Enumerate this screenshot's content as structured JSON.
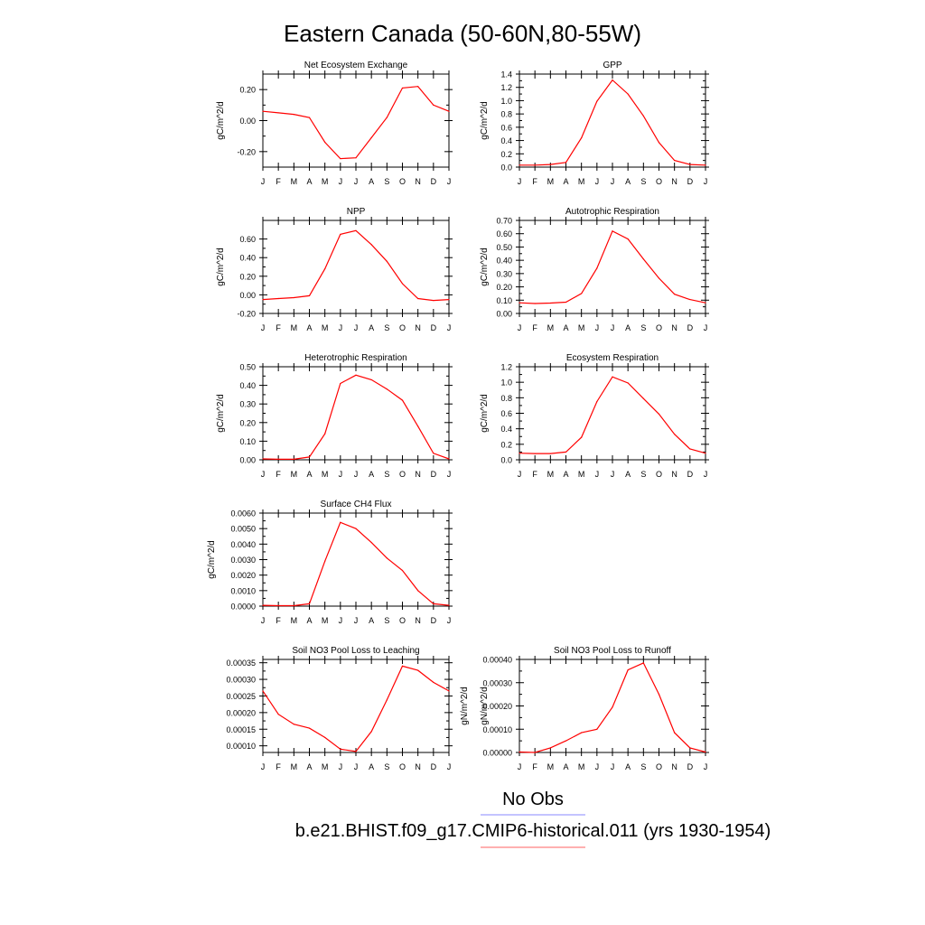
{
  "figure": {
    "title": "Eastern Canada (50-60N,80-55W)",
    "legend": {
      "obs_label": "No Obs",
      "obs_color": "#8a8aff",
      "model_label": "b.e21.BHIST.f09_g17.CMIP6-historical.011 (yrs 1930-1954)",
      "model_color": "#ff6060"
    },
    "series_color": "#ff0000"
  },
  "chart_data": [
    {
      "type": "line",
      "title": "Net Ecosystem Exchange",
      "ylabel": "gC/m^2/d",
      "x": [
        "J",
        "F",
        "M",
        "A",
        "M",
        "J",
        "J",
        "A",
        "S",
        "O",
        "N",
        "D",
        "J"
      ],
      "values": [
        0.06,
        0.05,
        0.04,
        0.02,
        -0.14,
        -0.245,
        -0.24,
        -0.11,
        0.02,
        0.21,
        0.22,
        0.1,
        0.06
      ],
      "ylim": [
        -0.3,
        0.3
      ],
      "yticks": [
        -0.2,
        0.0,
        0.2
      ],
      "yticklabels": [
        "-0.20",
        "0.00",
        "0.20"
      ]
    },
    {
      "type": "line",
      "title": "GPP",
      "ylabel": "gC/m^2/d",
      "x": [
        "J",
        "F",
        "M",
        "A",
        "M",
        "J",
        "J",
        "A",
        "S",
        "O",
        "N",
        "D",
        "J"
      ],
      "values": [
        0.03,
        0.03,
        0.04,
        0.07,
        0.44,
        0.99,
        1.31,
        1.1,
        0.77,
        0.37,
        0.1,
        0.04,
        0.03
      ],
      "ylim": [
        0.0,
        1.4
      ],
      "yticks": [
        0.0,
        0.2,
        0.4,
        0.6,
        0.8,
        1.0,
        1.2,
        1.4
      ],
      "yticklabels": [
        "0.0",
        "0.2",
        "0.4",
        "0.6",
        "0.8",
        "1.0",
        "1.2",
        "1.4"
      ]
    },
    {
      "type": "line",
      "title": "NPP",
      "ylabel": "gC/m^2/d",
      "x": [
        "J",
        "F",
        "M",
        "A",
        "M",
        "J",
        "J",
        "A",
        "S",
        "O",
        "N",
        "D",
        "J"
      ],
      "values": [
        -0.05,
        -0.04,
        -0.03,
        -0.01,
        0.28,
        0.65,
        0.69,
        0.54,
        0.36,
        0.12,
        -0.04,
        -0.06,
        -0.05
      ],
      "ylim": [
        -0.2,
        0.8
      ],
      "yticks": [
        -0.2,
        0.0,
        0.2,
        0.4,
        0.6
      ],
      "yticklabels": [
        "-0.20",
        "0.00",
        "0.20",
        "0.40",
        "0.60"
      ]
    },
    {
      "type": "line",
      "title": "Autotrophic Respiration",
      "ylabel": "gC/m^2/d",
      "x": [
        "J",
        "F",
        "M",
        "A",
        "M",
        "J",
        "J",
        "A",
        "S",
        "O",
        "N",
        "D",
        "J"
      ],
      "values": [
        0.08,
        0.075,
        0.078,
        0.085,
        0.15,
        0.34,
        0.62,
        0.56,
        0.41,
        0.265,
        0.145,
        0.105,
        0.08
      ],
      "ylim": [
        0.0,
        0.7
      ],
      "yticks": [
        0.0,
        0.1,
        0.2,
        0.3,
        0.4,
        0.5,
        0.6,
        0.7
      ],
      "yticklabels": [
        "0.00",
        "0.10",
        "0.20",
        "0.30",
        "0.40",
        "0.50",
        "0.60",
        "0.70"
      ]
    },
    {
      "type": "line",
      "title": "Heterotrophic Respiration",
      "ylabel": "gC/m^2/d",
      "x": [
        "J",
        "F",
        "M",
        "A",
        "M",
        "J",
        "J",
        "A",
        "S",
        "O",
        "N",
        "D",
        "J"
      ],
      "values": [
        0.005,
        0.003,
        0.003,
        0.015,
        0.14,
        0.41,
        0.455,
        0.43,
        0.38,
        0.32,
        0.18,
        0.035,
        0.005
      ],
      "ylim": [
        0.0,
        0.5
      ],
      "yticks": [
        0.0,
        0.1,
        0.2,
        0.3,
        0.4,
        0.5
      ],
      "yticklabels": [
        "0.00",
        "0.10",
        "0.20",
        "0.30",
        "0.40",
        "0.50"
      ]
    },
    {
      "type": "line",
      "title": "Ecosystem Respiration",
      "ylabel": "gC/m^2/d",
      "x": [
        "J",
        "F",
        "M",
        "A",
        "M",
        "J",
        "J",
        "A",
        "S",
        "O",
        "N",
        "D",
        "J"
      ],
      "values": [
        0.085,
        0.08,
        0.08,
        0.1,
        0.29,
        0.75,
        1.07,
        0.99,
        0.79,
        0.59,
        0.33,
        0.14,
        0.085
      ],
      "ylim": [
        0.0,
        1.2
      ],
      "yticks": [
        0.0,
        0.2,
        0.4,
        0.6,
        0.8,
        1.0,
        1.2
      ],
      "yticklabels": [
        "0.0",
        "0.2",
        "0.4",
        "0.6",
        "0.8",
        "1.0",
        "1.2"
      ]
    },
    {
      "type": "line",
      "title": "Surface CH4 Flux",
      "ylabel": "gC/m^2/d",
      "x": [
        "J",
        "F",
        "M",
        "A",
        "M",
        "J",
        "J",
        "A",
        "S",
        "O",
        "N",
        "D",
        "J"
      ],
      "values": [
        5e-05,
        3e-05,
        3e-05,
        0.00015,
        0.0029,
        0.0054,
        0.005,
        0.0041,
        0.0031,
        0.0023,
        0.001,
        0.00015,
        5e-05
      ],
      "ylim": [
        0.0,
        0.006
      ],
      "yticks": [
        0.0,
        0.001,
        0.002,
        0.003,
        0.004,
        0.005,
        0.006
      ],
      "yticklabels": [
        "0.0000",
        "0.0010",
        "0.0020",
        "0.0030",
        "0.0040",
        "0.0050",
        "0.0060"
      ]
    },
    {
      "type": "line",
      "title": "Soil NO3 Pool Loss to Leaching",
      "ylabel": "gN/m^2/d",
      "x": [
        "J",
        "F",
        "M",
        "A",
        "M",
        "J",
        "J",
        "A",
        "S",
        "O",
        "N",
        "D",
        "J"
      ],
      "values": [
        0.000265,
        0.000195,
        0.000165,
        0.000153,
        0.000125,
        9e-05,
        8.3e-05,
        0.000143,
        0.000238,
        0.00034,
        0.000327,
        0.000291,
        0.000265
      ],
      "ylim": [
        8e-05,
        0.00036
      ],
      "yticks": [
        0.0001,
        0.00015,
        0.0002,
        0.00025,
        0.0003,
        0.00035
      ],
      "yticklabels": [
        "0.00010",
        "0.00015",
        "0.00020",
        "0.00025",
        "0.00030",
        "0.00035"
      ]
    },
    {
      "type": "line",
      "title": "Soil NO3 Pool Loss to Runoff",
      "ylabel": "gN/m^2/d",
      "x": [
        "J",
        "F",
        "M",
        "A",
        "M",
        "J",
        "J",
        "A",
        "S",
        "O",
        "N",
        "D",
        "J"
      ],
      "values": [
        2e-06,
        0.0,
        2e-05,
        5e-05,
        8.5e-05,
        0.0001,
        0.000195,
        0.000355,
        0.000385,
        0.00025,
        8.5e-05,
        2e-05,
        2e-06
      ],
      "ylim": [
        0.0,
        0.0004
      ],
      "yticks": [
        0.0,
        0.0001,
        0.0002,
        0.0003,
        0.0004
      ],
      "yticklabels": [
        "0.00000",
        "0.00010",
        "0.00020",
        "0.00030",
        "0.00040"
      ]
    }
  ]
}
